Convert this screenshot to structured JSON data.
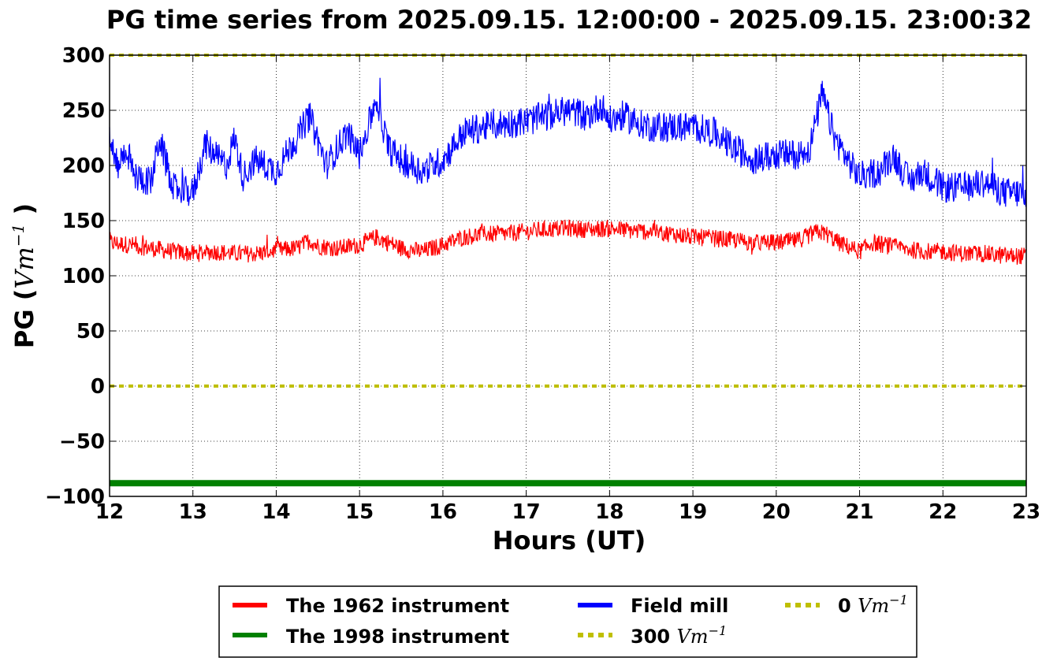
{
  "chart_data": {
    "type": "line",
    "title": "PG time series from 2025.09.15. 12:00:00 - 2025.09.15. 23:00:32",
    "xlabel": "Hours (UT)",
    "ylabel": "PG",
    "ylabel_unit": "Vm",
    "ylabel_unit_exp": "−1",
    "xlim": [
      12,
      23
    ],
    "ylim": [
      -100,
      300
    ],
    "xticks": [
      12,
      13,
      14,
      15,
      16,
      17,
      18,
      19,
      20,
      21,
      22,
      23
    ],
    "yticks": [
      300,
      250,
      200,
      150,
      100,
      50,
      0,
      -50,
      -100
    ],
    "ytick_labels": [
      "300",
      "250",
      "200",
      "150",
      "100",
      "50",
      "0",
      "−50",
      "−100"
    ],
    "grid": true,
    "legend_position": "below-center",
    "series": [
      {
        "name": "The 1962 instrument",
        "color": "#ff0000",
        "style": "solid",
        "x": [
          12.0,
          12.25,
          12.5,
          12.75,
          13.0,
          13.25,
          13.5,
          13.75,
          14.0,
          14.25,
          14.4,
          14.5,
          14.75,
          15.0,
          15.2,
          15.5,
          15.75,
          16.0,
          16.25,
          16.5,
          16.75,
          17.0,
          17.25,
          17.5,
          17.75,
          18.0,
          18.25,
          18.5,
          18.75,
          19.0,
          19.25,
          19.5,
          19.75,
          20.0,
          20.25,
          20.5,
          20.6,
          20.75,
          21.0,
          21.15,
          21.5,
          21.75,
          22.0,
          22.25,
          22.5,
          22.75,
          23.0
        ],
        "y": [
          130,
          128,
          125,
          122,
          120,
          122,
          120,
          120,
          123,
          125,
          132,
          127,
          125,
          128,
          135,
          125,
          122,
          128,
          135,
          138,
          138,
          140,
          142,
          143,
          142,
          143,
          141,
          140,
          138,
          135,
          134,
          132,
          130,
          130,
          132,
          140,
          138,
          130,
          122,
          130,
          125,
          122,
          122,
          120,
          120,
          118,
          118
        ]
      },
      {
        "name": "The 1998 instrument",
        "color": "#008000",
        "style": "thick",
        "x": [
          12,
          23
        ],
        "y": [
          -88,
          -88
        ]
      },
      {
        "name": "Field mill",
        "color": "#0000ff",
        "style": "solid",
        "x": [
          12.0,
          12.1,
          12.2,
          12.3,
          12.5,
          12.6,
          12.75,
          13.0,
          13.15,
          13.25,
          13.4,
          13.5,
          13.6,
          13.75,
          14.0,
          14.2,
          14.4,
          14.6,
          14.85,
          15.0,
          15.2,
          15.35,
          15.5,
          15.75,
          16.0,
          16.25,
          16.5,
          16.75,
          17.0,
          17.25,
          17.5,
          17.75,
          17.9,
          18.0,
          18.15,
          18.3,
          18.5,
          18.75,
          19.0,
          19.25,
          19.5,
          19.75,
          20.0,
          20.25,
          20.4,
          20.55,
          20.7,
          20.9,
          21.0,
          21.25,
          21.4,
          21.6,
          21.75,
          22.0,
          22.25,
          22.5,
          22.75,
          23.0
        ],
        "y": [
          225,
          200,
          215,
          190,
          185,
          225,
          180,
          175,
          220,
          210,
          200,
          225,
          190,
          205,
          195,
          220,
          245,
          200,
          230,
          210,
          260,
          215,
          205,
          195,
          205,
          230,
          235,
          238,
          240,
          245,
          250,
          245,
          255,
          240,
          245,
          240,
          235,
          235,
          235,
          230,
          215,
          205,
          210,
          210,
          215,
          265,
          225,
          200,
          190,
          195,
          210,
          185,
          195,
          180,
          180,
          185,
          175,
          175
        ]
      }
    ],
    "reference_lines": [
      {
        "name": "300",
        "unit": "Vm",
        "exp": "−1",
        "value": 300,
        "color": "#bfbf00",
        "style": "dotted"
      },
      {
        "name": "0",
        "unit": "Vm",
        "exp": "−1",
        "value": 0,
        "color": "#bfbf00",
        "style": "dotted"
      }
    ]
  }
}
